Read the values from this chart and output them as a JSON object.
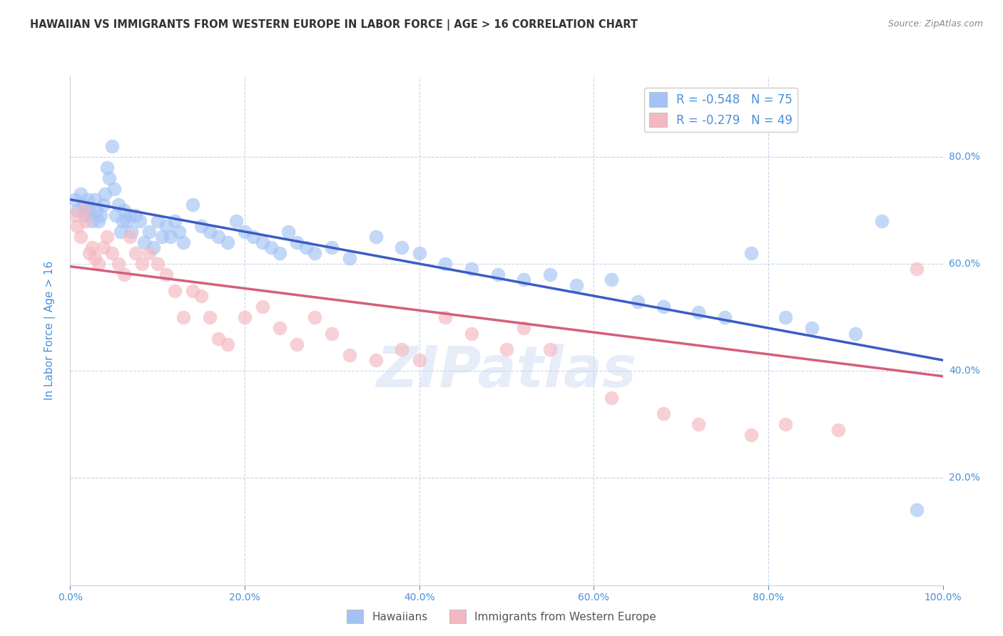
{
  "title": "HAWAIIAN VS IMMIGRANTS FROM WESTERN EUROPE IN LABOR FORCE | AGE > 16 CORRELATION CHART",
  "source": "Source: ZipAtlas.com",
  "ylabel": "In Labor Force | Age > 16",
  "watermark": "ZIPatlas",
  "blue_R": "-0.548",
  "blue_N": "75",
  "pink_R": "-0.279",
  "pink_N": "49",
  "legend_hawaiians": "Hawaiians",
  "legend_immigrants": "Immigrants from Western Europe",
  "xlim": [
    0.0,
    1.0
  ],
  "ylim": [
    0.0,
    0.95
  ],
  "xticks": [
    0.0,
    0.2,
    0.4,
    0.6,
    0.8,
    1.0
  ],
  "yticks": [
    0.2,
    0.4,
    0.6,
    0.8
  ],
  "ytick_labels": [
    "20.0%",
    "40.0%",
    "60.0%",
    "80.0%"
  ],
  "xtick_labels": [
    "0.0%",
    "20.0%",
    "40.0%",
    "60.0%",
    "80.0%",
    "100.0%"
  ],
  "blue_color": "#a4c2f4",
  "pink_color": "#f4b8c1",
  "blue_line_color": "#3a5cc5",
  "pink_line_color": "#d45f7a",
  "title_color": "#333333",
  "axis_color": "#4a90d9",
  "tick_color": "#4a90d9",
  "background_color": "#ffffff",
  "grid_color": "#c8d4e8",
  "blue_scatter_x": [
    0.005,
    0.008,
    0.012,
    0.015,
    0.018,
    0.02,
    0.022,
    0.025,
    0.028,
    0.03,
    0.032,
    0.035,
    0.038,
    0.04,
    0.042,
    0.045,
    0.048,
    0.05,
    0.052,
    0.055,
    0.058,
    0.06,
    0.062,
    0.065,
    0.068,
    0.07,
    0.075,
    0.08,
    0.085,
    0.09,
    0.095,
    0.1,
    0.105,
    0.11,
    0.115,
    0.12,
    0.125,
    0.13,
    0.14,
    0.15,
    0.16,
    0.17,
    0.18,
    0.19,
    0.2,
    0.21,
    0.22,
    0.23,
    0.24,
    0.25,
    0.26,
    0.27,
    0.28,
    0.3,
    0.32,
    0.35,
    0.38,
    0.4,
    0.43,
    0.46,
    0.49,
    0.52,
    0.55,
    0.58,
    0.62,
    0.65,
    0.68,
    0.72,
    0.75,
    0.78,
    0.82,
    0.85,
    0.9,
    0.93,
    0.97
  ],
  "blue_scatter_y": [
    0.72,
    0.7,
    0.73,
    0.71,
    0.69,
    0.72,
    0.7,
    0.68,
    0.72,
    0.7,
    0.68,
    0.69,
    0.71,
    0.73,
    0.78,
    0.76,
    0.82,
    0.74,
    0.69,
    0.71,
    0.66,
    0.68,
    0.7,
    0.68,
    0.69,
    0.66,
    0.69,
    0.68,
    0.64,
    0.66,
    0.63,
    0.68,
    0.65,
    0.67,
    0.65,
    0.68,
    0.66,
    0.64,
    0.71,
    0.67,
    0.66,
    0.65,
    0.64,
    0.68,
    0.66,
    0.65,
    0.64,
    0.63,
    0.62,
    0.66,
    0.64,
    0.63,
    0.62,
    0.63,
    0.61,
    0.65,
    0.63,
    0.62,
    0.6,
    0.59,
    0.58,
    0.57,
    0.58,
    0.56,
    0.57,
    0.53,
    0.52,
    0.51,
    0.5,
    0.62,
    0.5,
    0.48,
    0.47,
    0.68,
    0.14
  ],
  "pink_scatter_x": [
    0.005,
    0.008,
    0.012,
    0.015,
    0.018,
    0.022,
    0.025,
    0.028,
    0.032,
    0.038,
    0.042,
    0.048,
    0.055,
    0.062,
    0.068,
    0.075,
    0.082,
    0.09,
    0.1,
    0.11,
    0.12,
    0.13,
    0.14,
    0.15,
    0.16,
    0.17,
    0.18,
    0.2,
    0.22,
    0.24,
    0.26,
    0.28,
    0.3,
    0.32,
    0.35,
    0.38,
    0.4,
    0.43,
    0.46,
    0.5,
    0.52,
    0.55,
    0.62,
    0.68,
    0.72,
    0.78,
    0.82,
    0.88,
    0.97
  ],
  "pink_scatter_y": [
    0.69,
    0.67,
    0.65,
    0.7,
    0.68,
    0.62,
    0.63,
    0.61,
    0.6,
    0.63,
    0.65,
    0.62,
    0.6,
    0.58,
    0.65,
    0.62,
    0.6,
    0.62,
    0.6,
    0.58,
    0.55,
    0.5,
    0.55,
    0.54,
    0.5,
    0.46,
    0.45,
    0.5,
    0.52,
    0.48,
    0.45,
    0.5,
    0.47,
    0.43,
    0.42,
    0.44,
    0.42,
    0.5,
    0.47,
    0.44,
    0.48,
    0.44,
    0.35,
    0.32,
    0.3,
    0.28,
    0.3,
    0.29,
    0.59
  ],
  "blue_trendline_x": [
    0.0,
    1.0
  ],
  "blue_trendline_y": [
    0.72,
    0.42
  ],
  "pink_trendline_x": [
    0.0,
    1.0
  ],
  "pink_trendline_y": [
    0.595,
    0.39
  ]
}
